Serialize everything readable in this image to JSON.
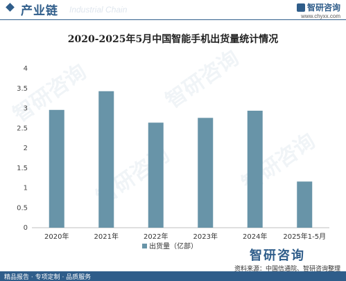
{
  "header": {
    "title": "产业链",
    "watermark": "Industrial Chain",
    "brand_name": "智研咨询",
    "brand_url": "www.chyxx.com"
  },
  "colors": {
    "bar": "#6894a8",
    "accent": "#2f5d8a"
  },
  "chart_data": {
    "type": "bar",
    "title": "2020-2025年5月中国智能手机出货量统计情况",
    "categories": [
      "2020年",
      "2021年",
      "2022年",
      "2023年",
      "2024年",
      "2025年1-5月"
    ],
    "series": [
      {
        "name": "出货量（亿部）",
        "values": [
          2.96,
          3.43,
          2.64,
          2.76,
          2.94,
          1.16
        ]
      }
    ],
    "ylim": [
      0,
      4
    ],
    "yticks": [
      "0",
      "0.5",
      "1",
      "1.5",
      "2",
      "2.5",
      "3",
      "3.5",
      "4"
    ],
    "grid": false,
    "legend": "bottom-center"
  },
  "footer": {
    "left": "精品报告 · 专项定制 · 品质服务",
    "source": "资料来源：中国信通院、智研咨询整理",
    "big_brand": "智研咨询"
  }
}
